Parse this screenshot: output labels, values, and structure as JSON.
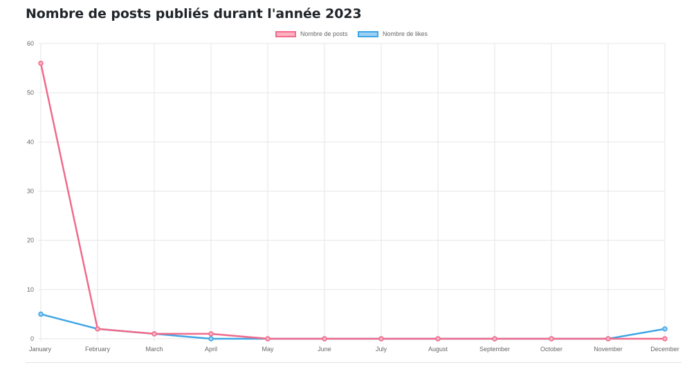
{
  "page": {
    "title": "Nombre de posts publiés durant l'année 2023"
  },
  "colors": {
    "posts": "#f06a8a",
    "posts_fill": "#ffb1c1",
    "likes": "#3ea5e5",
    "likes_fill": "#9ad0f5",
    "grid": "#e6e6e6",
    "tick": "#666666"
  },
  "chart_data": {
    "type": "line",
    "title": "Nombre de posts publiés durant l'année 2023",
    "categories": [
      "January",
      "February",
      "March",
      "April",
      "May",
      "June",
      "July",
      "August",
      "September",
      "October",
      "November",
      "December"
    ],
    "series": [
      {
        "name": "Nombre de posts",
        "color": "#f06a8a",
        "values": [
          56,
          2,
          1,
          1,
          0,
          0,
          0,
          0,
          0,
          0,
          0,
          0
        ]
      },
      {
        "name": "Nombre de likes",
        "color": "#3ea5e5",
        "values": [
          5,
          2,
          1,
          0,
          0,
          0,
          0,
          0,
          0,
          0,
          0,
          2
        ]
      }
    ],
    "ylim": [
      0,
      60
    ],
    "yticks": [
      0,
      10,
      20,
      30,
      40,
      50,
      60
    ],
    "xlabel": "",
    "ylabel": "",
    "grid": true,
    "legend_position": "top-center"
  }
}
